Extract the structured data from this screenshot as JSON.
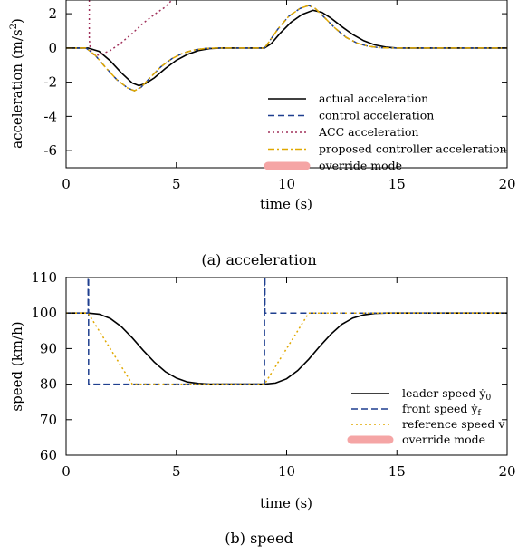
{
  "chart_data": [
    {
      "type": "line",
      "caption": "(a) acceleration",
      "xlabel": "time (s)",
      "ylabel": "acceleration (m/s",
      "ylabel_sup": "2",
      "ylabel_close": ")",
      "xlim": [
        0,
        20
      ],
      "ylim": [
        -7,
        2.8
      ],
      "xticks": [
        0,
        5,
        10,
        15,
        20
      ],
      "yticks": [
        2,
        0,
        -2,
        -4,
        -6
      ],
      "grid": false,
      "legend_position": "bottom-right",
      "series": [
        {
          "name": "actual acceleration",
          "color": "#000000",
          "style": "solid",
          "points": [
            [
              0,
              0
            ],
            [
              1,
              0
            ],
            [
              1.5,
              -0.2
            ],
            [
              2,
              -0.75
            ],
            [
              2.5,
              -1.45
            ],
            [
              3,
              -2.05
            ],
            [
              3.3,
              -2.2
            ],
            [
              3.6,
              -2.08
            ],
            [
              4,
              -1.75
            ],
            [
              4.5,
              -1.2
            ],
            [
              5,
              -0.72
            ],
            [
              5.5,
              -0.38
            ],
            [
              6,
              -0.15
            ],
            [
              6.5,
              -0.04
            ],
            [
              7,
              0
            ],
            [
              9,
              0
            ],
            [
              9.3,
              0.25
            ],
            [
              9.7,
              0.85
            ],
            [
              10.2,
              1.5
            ],
            [
              10.7,
              1.95
            ],
            [
              11.2,
              2.2
            ],
            [
              11.6,
              2.08
            ],
            [
              12,
              1.75
            ],
            [
              12.5,
              1.25
            ],
            [
              13,
              0.78
            ],
            [
              13.5,
              0.42
            ],
            [
              14,
              0.18
            ],
            [
              14.5,
              0.05
            ],
            [
              15,
              0
            ],
            [
              20,
              0
            ]
          ]
        },
        {
          "name": "control acceleration",
          "color": "#1f3f8f",
          "style": "dashed",
          "points": [
            [
              0,
              0
            ],
            [
              0.9,
              0
            ],
            [
              1.3,
              -0.4
            ],
            [
              1.8,
              -1.15
            ],
            [
              2.3,
              -1.85
            ],
            [
              2.8,
              -2.35
            ],
            [
              3.1,
              -2.5
            ],
            [
              3.4,
              -2.3
            ],
            [
              3.8,
              -1.75
            ],
            [
              4.3,
              -1.1
            ],
            [
              4.8,
              -0.62
            ],
            [
              5.3,
              -0.3
            ],
            [
              5.8,
              -0.12
            ],
            [
              6.3,
              -0.03
            ],
            [
              6.8,
              0
            ],
            [
              9,
              0
            ],
            [
              9.2,
              0.35
            ],
            [
              9.6,
              1.1
            ],
            [
              10.1,
              1.85
            ],
            [
              10.6,
              2.3
            ],
            [
              11,
              2.48
            ],
            [
              11.3,
              2.3
            ],
            [
              11.7,
              1.8
            ],
            [
              12.2,
              1.15
            ],
            [
              12.7,
              0.62
            ],
            [
              13.2,
              0.28
            ],
            [
              13.7,
              0.1
            ],
            [
              14.2,
              0.02
            ],
            [
              14.7,
              0
            ],
            [
              20,
              0
            ]
          ]
        },
        {
          "name": "ACC acceleration",
          "color": "#a0305a",
          "style": "dotted",
          "points": [
            [
              1.05,
              2.8
            ],
            [
              1.05,
              0.5
            ],
            [
              1.1,
              -0.1
            ],
            [
              1.25,
              -0.38
            ],
            [
              1.5,
              -0.42
            ],
            [
              2,
              -0.15
            ],
            [
              2.5,
              0.3
            ],
            [
              3,
              0.85
            ],
            [
              3.5,
              1.45
            ],
            [
              4,
              1.95
            ],
            [
              4.5,
              2.4
            ],
            [
              4.8,
              2.8
            ]
          ]
        },
        {
          "name": "proposed controller acceleration",
          "color": "#e0a800",
          "style": "dashdot",
          "points": [
            [
              0,
              0
            ],
            [
              0.9,
              0
            ],
            [
              1.3,
              -0.4
            ],
            [
              1.8,
              -1.15
            ],
            [
              2.3,
              -1.85
            ],
            [
              2.8,
              -2.35
            ],
            [
              3.1,
              -2.5
            ],
            [
              3.4,
              -2.3
            ],
            [
              3.8,
              -1.75
            ],
            [
              4.3,
              -1.1
            ],
            [
              4.8,
              -0.62
            ],
            [
              5.3,
              -0.3
            ],
            [
              5.8,
              -0.12
            ],
            [
              6.3,
              -0.03
            ],
            [
              6.8,
              0
            ],
            [
              9,
              0
            ],
            [
              9.2,
              0.35
            ],
            [
              9.6,
              1.1
            ],
            [
              10.1,
              1.85
            ],
            [
              10.6,
              2.3
            ],
            [
              11,
              2.48
            ],
            [
              11.3,
              2.3
            ],
            [
              11.7,
              1.8
            ],
            [
              12.2,
              1.15
            ],
            [
              12.7,
              0.62
            ],
            [
              13.2,
              0.28
            ],
            [
              13.7,
              0.1
            ],
            [
              14.2,
              0.02
            ],
            [
              14.7,
              0
            ],
            [
              20,
              0
            ]
          ]
        },
        {
          "name": "override mode",
          "color": "#f5a5a5",
          "style": "band",
          "points": []
        }
      ]
    },
    {
      "type": "line",
      "caption": "(b) speed",
      "xlabel": "time (s)",
      "ylabel": "speed (km/h)",
      "xlim": [
        0,
        20
      ],
      "ylim": [
        60,
        110
      ],
      "xticks": [
        0,
        5,
        10,
        15,
        20
      ],
      "yticks": [
        110,
        100,
        90,
        80,
        70,
        60
      ],
      "grid": false,
      "legend_position": "bottom-right",
      "series": [
        {
          "name": "leader speed ẏ",
          "name_sub": "0",
          "color": "#000000",
          "style": "solid",
          "points": [
            [
              0,
              100
            ],
            [
              1,
              100
            ],
            [
              1.5,
              99.7
            ],
            [
              2,
              98.5
            ],
            [
              2.5,
              96.2
            ],
            [
              3,
              93
            ],
            [
              3.5,
              89.5
            ],
            [
              4,
              86.2
            ],
            [
              4.5,
              83.5
            ],
            [
              5,
              81.7
            ],
            [
              5.5,
              80.6
            ],
            [
              6,
              80.2
            ],
            [
              6.5,
              80
            ],
            [
              9,
              80
            ],
            [
              9.5,
              80.3
            ],
            [
              10,
              81.5
            ],
            [
              10.5,
              83.8
            ],
            [
              11,
              87
            ],
            [
              11.5,
              90.6
            ],
            [
              12,
              94
            ],
            [
              12.5,
              96.8
            ],
            [
              13,
              98.6
            ],
            [
              13.5,
              99.5
            ],
            [
              14,
              99.9
            ],
            [
              14.5,
              100
            ],
            [
              20,
              100
            ]
          ]
        },
        {
          "name": "front speed ẏ",
          "name_sub": "f",
          "color": "#1f3f8f",
          "style": "dashed",
          "points": [
            [
              0,
              100
            ],
            [
              1,
              100
            ],
            [
              1,
              110
            ],
            [
              1.02,
              110
            ],
            [
              1.02,
              80
            ],
            [
              9,
              80
            ],
            [
              9,
              110
            ],
            [
              9.02,
              110
            ],
            [
              9.02,
              100
            ],
            [
              20,
              100
            ]
          ]
        },
        {
          "name": "reference speed v",
          "color": "#e0a800",
          "style": "dotted",
          "points": [
            [
              0,
              100
            ],
            [
              1,
              100
            ],
            [
              3,
              80
            ],
            [
              9,
              80
            ],
            [
              11,
              100
            ],
            [
              20,
              100
            ]
          ]
        },
        {
          "name": "override mode",
          "color": "#f5a5a5",
          "style": "band",
          "points": []
        }
      ]
    }
  ]
}
